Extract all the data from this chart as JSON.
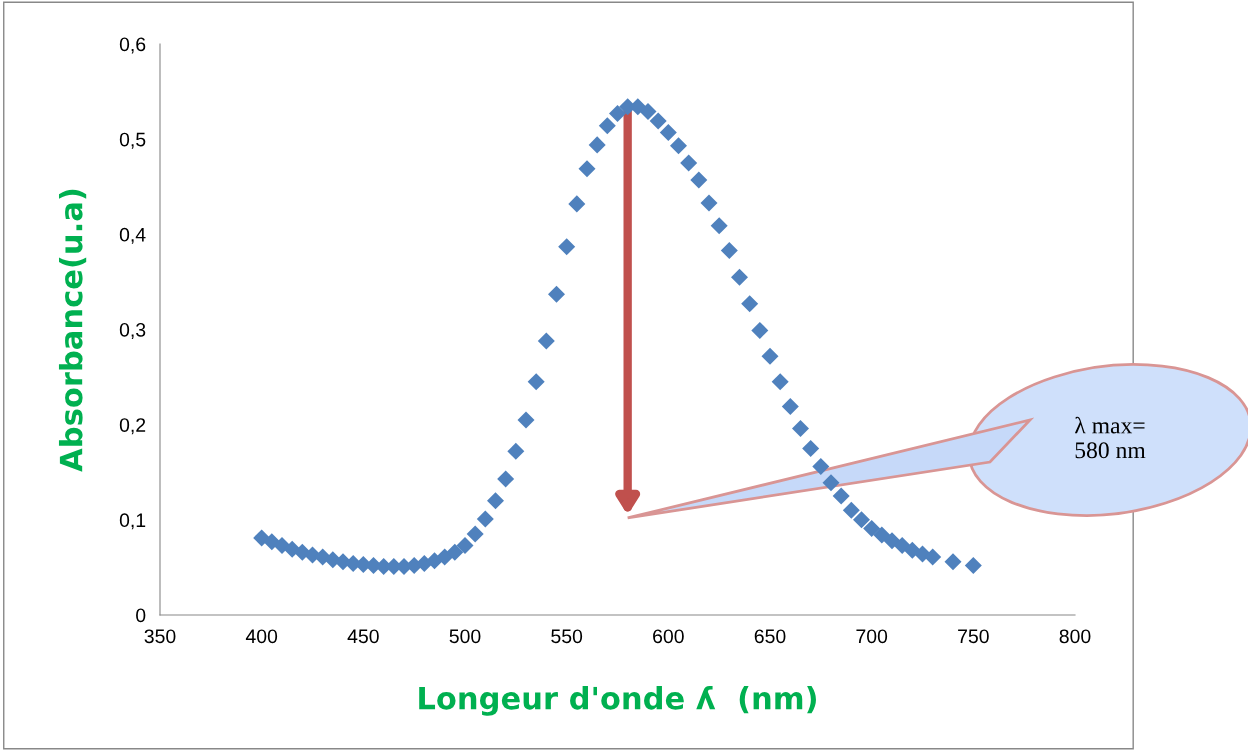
{
  "chart_data": {
    "type": "scatter",
    "xlabel": "Longeur d'onde ʎ  (nm)",
    "ylabel": "Absorbance(u.a)",
    "x": [
      400,
      405,
      410,
      415,
      420,
      425,
      430,
      435,
      440,
      445,
      450,
      455,
      460,
      465,
      470,
      475,
      480,
      485,
      490,
      495,
      500,
      505,
      510,
      515,
      520,
      525,
      530,
      535,
      540,
      545,
      550,
      555,
      560,
      565,
      570,
      575,
      580,
      585,
      590,
      595,
      600,
      605,
      610,
      615,
      620,
      625,
      630,
      635,
      640,
      645,
      650,
      655,
      660,
      665,
      670,
      675,
      680,
      685,
      690,
      695,
      700,
      705,
      710,
      715,
      720,
      725,
      730,
      740,
      750
    ],
    "series": [
      {
        "color": "#4f81bd",
        "values": [
          0.081,
          0.077,
          0.073,
          0.069,
          0.066,
          0.063,
          0.061,
          0.058,
          0.056,
          0.054,
          0.053,
          0.052,
          0.051,
          0.051,
          0.051,
          0.052,
          0.054,
          0.057,
          0.061,
          0.066,
          0.073,
          0.085,
          0.101,
          0.12,
          0.143,
          0.172,
          0.205,
          0.245,
          0.288,
          0.337,
          0.387,
          0.432,
          0.469,
          0.494,
          0.514,
          0.527,
          0.534,
          0.534,
          0.529,
          0.519,
          0.507,
          0.493,
          0.475,
          0.457,
          0.433,
          0.409,
          0.383,
          0.355,
          0.327,
          0.299,
          0.272,
          0.245,
          0.219,
          0.196,
          0.175,
          0.156,
          0.139,
          0.125,
          0.11,
          0.1,
          0.091,
          0.084,
          0.078,
          0.073,
          0.068,
          0.064,
          0.061,
          0.056,
          0.052
        ]
      }
    ],
    "xlim": [
      350,
      800
    ],
    "xticks": [
      350,
      400,
      450,
      500,
      550,
      600,
      650,
      700,
      750,
      800
    ],
    "ylim": [
      0,
      0.6
    ],
    "yticks": [
      {
        "value": 0,
        "label": "0"
      },
      {
        "value": 0.1,
        "label": "0,1"
      },
      {
        "value": 0.2,
        "label": "0,2"
      },
      {
        "value": 0.3,
        "label": "0,3"
      },
      {
        "value": 0.4,
        "label": "0,4"
      },
      {
        "value": 0.5,
        "label": "0,5"
      },
      {
        "value": 0.6,
        "label": "0,6"
      }
    ],
    "marker": "diamond",
    "grid": false,
    "legend": false,
    "annotations": [
      "λ max=\n580 nm"
    ]
  }
}
